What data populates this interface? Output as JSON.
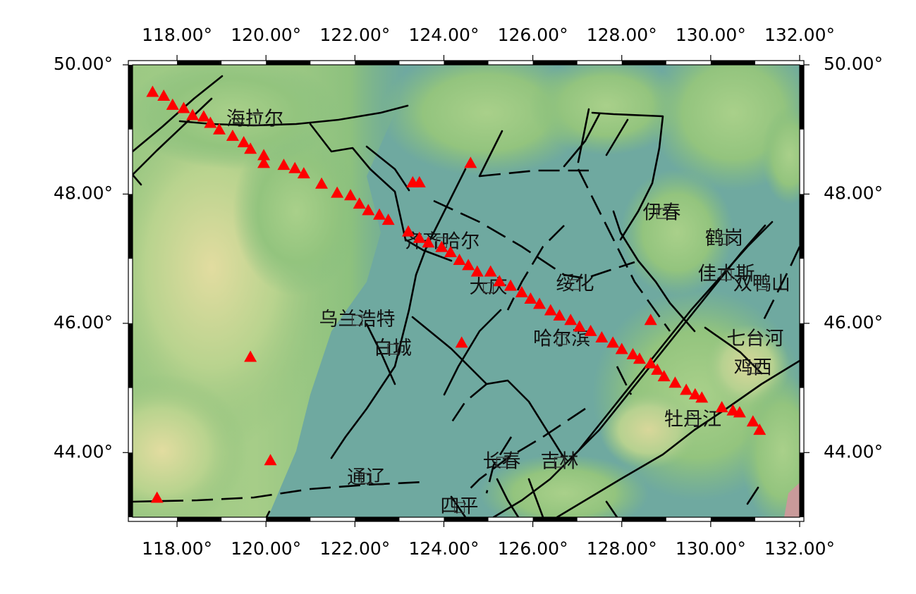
{
  "map": {
    "extent": {
      "lon_min": 117.0,
      "lon_max": 132.0,
      "lat_min": 43.0,
      "lat_max": 50.0
    },
    "lon_ticks": [
      {
        "lon": 118,
        "label": "118.00°"
      },
      {
        "lon": 120,
        "label": "120.00°"
      },
      {
        "lon": 122,
        "label": "122.00°"
      },
      {
        "lon": 124,
        "label": "124.00°"
      },
      {
        "lon": 126,
        "label": "126.00°"
      },
      {
        "lon": 128,
        "label": "128.00°"
      },
      {
        "lon": 130,
        "label": "130.00°"
      },
      {
        "lon": 132,
        "label": "132.00°"
      }
    ],
    "lat_ticks": [
      {
        "lat": 50,
        "label": "50.00°"
      },
      {
        "lat": 48,
        "label": "48.00°"
      },
      {
        "lat": 46,
        "label": "46.00°"
      },
      {
        "lat": 44,
        "label": "44.00°"
      }
    ],
    "colors": {
      "lowland": "#6fa9a0",
      "hills": "#8ec07c",
      "highland": "#d8d89a",
      "station_marker": "#ff0000",
      "fault_line": "#000000"
    },
    "cities": [
      {
        "name": "海拉尔",
        "lon": 119.75,
        "lat": 49.15
      },
      {
        "name": "齐齐哈尔",
        "lon": 123.95,
        "lat": 47.25
      },
      {
        "name": "伊春",
        "lon": 128.9,
        "lat": 47.7
      },
      {
        "name": "鹤岗",
        "lon": 130.3,
        "lat": 47.3
      },
      {
        "name": "佳木斯",
        "lon": 130.35,
        "lat": 46.75
      },
      {
        "name": "双鸭山",
        "lon": 131.15,
        "lat": 46.6
      },
      {
        "name": "大庆",
        "lon": 125.0,
        "lat": 46.55
      },
      {
        "name": "绥化",
        "lon": 126.95,
        "lat": 46.6
      },
      {
        "name": "乌兰浩特",
        "lon": 122.05,
        "lat": 46.05
      },
      {
        "name": "白城",
        "lon": 122.85,
        "lat": 45.6
      },
      {
        "name": "哈尔滨",
        "lon": 126.65,
        "lat": 45.75
      },
      {
        "name": "七台河",
        "lon": 131.0,
        "lat": 45.75
      },
      {
        "name": "鸡西",
        "lon": 130.95,
        "lat": 45.3
      },
      {
        "name": "牡丹江",
        "lon": 129.6,
        "lat": 44.5
      },
      {
        "name": "长春",
        "lon": 125.3,
        "lat": 43.85
      },
      {
        "name": "吉林",
        "lon": 126.6,
        "lat": 43.85
      },
      {
        "name": "通辽",
        "lon": 122.25,
        "lat": 43.6
      },
      {
        "name": "四平",
        "lon": 124.35,
        "lat": 43.15
      }
    ],
    "stations": [
      [
        117.45,
        49.58
      ],
      [
        117.7,
        49.52
      ],
      [
        117.9,
        49.38
      ],
      [
        118.15,
        49.33
      ],
      [
        118.35,
        49.22
      ],
      [
        118.6,
        49.2
      ],
      [
        118.75,
        49.1
      ],
      [
        118.95,
        49.0
      ],
      [
        119.25,
        48.9
      ],
      [
        119.5,
        48.8
      ],
      [
        119.65,
        48.7
      ],
      [
        119.95,
        48.6
      ],
      [
        119.95,
        48.48
      ],
      [
        120.4,
        48.45
      ],
      [
        120.65,
        48.4
      ],
      [
        120.85,
        48.32
      ],
      [
        121.25,
        48.16
      ],
      [
        121.6,
        48.02
      ],
      [
        121.9,
        47.98
      ],
      [
        122.1,
        47.85
      ],
      [
        122.3,
        47.75
      ],
      [
        122.55,
        47.68
      ],
      [
        122.75,
        47.6
      ],
      [
        123.2,
        47.42
      ],
      [
        123.45,
        47.32
      ],
      [
        123.65,
        47.25
      ],
      [
        123.95,
        47.18
      ],
      [
        124.15,
        47.1
      ],
      [
        124.35,
        46.98
      ],
      [
        124.55,
        46.9
      ],
      [
        124.75,
        46.8
      ],
      [
        125.05,
        46.8
      ],
      [
        125.25,
        46.65
      ],
      [
        125.5,
        46.58
      ],
      [
        125.75,
        46.48
      ],
      [
        125.95,
        46.38
      ],
      [
        126.15,
        46.3
      ],
      [
        126.4,
        46.2
      ],
      [
        126.6,
        46.12
      ],
      [
        126.85,
        46.05
      ],
      [
        127.05,
        45.95
      ],
      [
        127.3,
        45.88
      ],
      [
        127.55,
        45.78
      ],
      [
        127.8,
        45.7
      ],
      [
        128.0,
        45.6
      ],
      [
        128.25,
        45.52
      ],
      [
        128.4,
        45.45
      ],
      [
        128.65,
        45.38
      ],
      [
        128.8,
        45.28
      ],
      [
        128.95,
        45.18
      ],
      [
        129.2,
        45.08
      ],
      [
        129.45,
        44.97
      ],
      [
        129.65,
        44.9
      ],
      [
        129.8,
        44.85
      ],
      [
        130.25,
        44.7
      ],
      [
        130.5,
        44.65
      ],
      [
        130.65,
        44.62
      ],
      [
        130.95,
        44.48
      ],
      [
        131.1,
        44.35
      ],
      [
        124.6,
        48.48
      ],
      [
        123.3,
        48.18
      ],
      [
        123.45,
        48.18
      ],
      [
        128.65,
        46.05
      ],
      [
        124.4,
        45.7
      ],
      [
        119.65,
        45.48
      ],
      [
        120.1,
        43.88
      ],
      [
        117.55,
        43.3
      ]
    ]
  }
}
